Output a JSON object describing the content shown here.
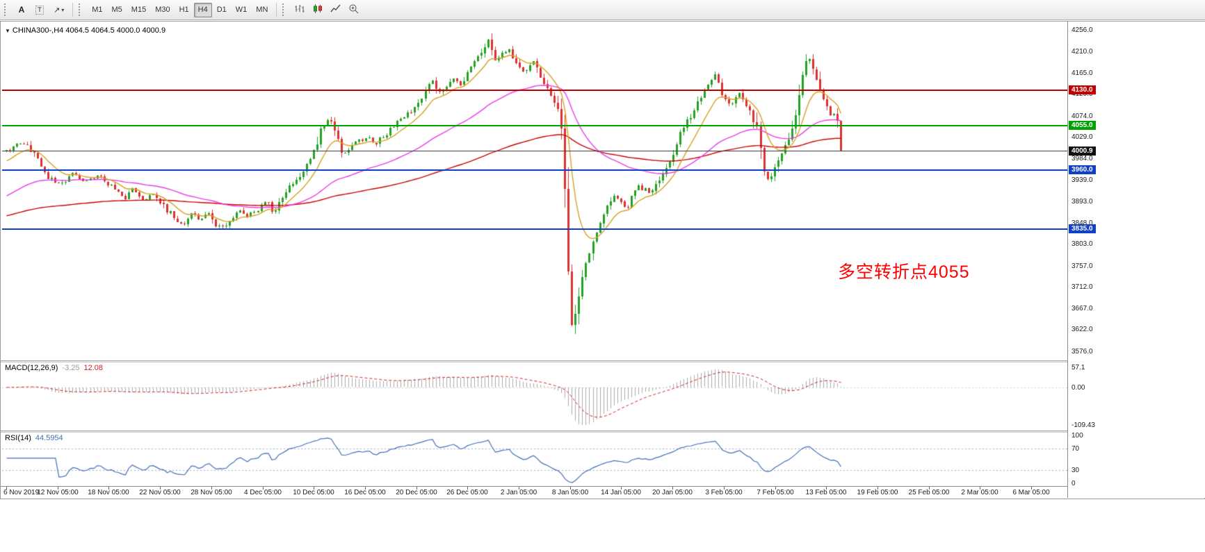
{
  "toolbar": {
    "line_tools": {
      "text_tool": "A",
      "text_label_tool": "T",
      "arrow_tool_glyph": "↗",
      "dropdown_caret": "▾"
    },
    "timeframes": [
      "M1",
      "M5",
      "M15",
      "M30",
      "H1",
      "H4",
      "D1",
      "W1",
      "MN"
    ],
    "active_timeframe": "H4",
    "chart_icons": [
      "bar-chart-mode-icon",
      "candlestick-mode-icon",
      "line-chart-mode-icon",
      "zoom-in-icon"
    ]
  },
  "main_chart": {
    "symbol_marker": "▼",
    "symbol_label": "CHINA300-,H4",
    "ohlc_label": "4064.5 4064.5 4000.0 4000.9",
    "annotation_text": "多空转折点4055",
    "annotation_color": "#FF0000",
    "price_ticks": [
      "4256.0",
      "4210.0",
      "4165.0",
      "4120.0",
      "4074.0",
      "4029.0",
      "3984.0",
      "3939.0",
      "3893.0",
      "3848.0",
      "3803.0",
      "3757.0",
      "3712.0",
      "3667.0",
      "3622.0",
      "3576.0"
    ],
    "badges": [
      {
        "text": "4130.0",
        "price": 4130.0,
        "color": "#C00000"
      },
      {
        "text": "4055.0",
        "price": 4055.0,
        "color": "#00A000"
      },
      {
        "text": "4000.9",
        "price": 4000.9,
        "color": "#111111"
      },
      {
        "text": "3960.0",
        "price": 3960.0,
        "color": "#1040C8"
      },
      {
        "text": "3835.0",
        "price": 3835.0,
        "color": "#1040C8"
      }
    ],
    "time_labels": [
      "6 Nov 2019",
      "12 Nov 05:00",
      "18 Nov 05:00",
      "22 Nov 05:00",
      "28 Nov 05:00",
      "4 Dec 05:00",
      "10 Dec 05:00",
      "16 Dec 05:00",
      "20 Dec 05:00",
      "26 Dec 05:00",
      "2 Jan 05:00",
      "8 Jan 05:00",
      "14 Jan 05:00",
      "20 Jan 05:00",
      "3 Feb 05:00",
      "7 Feb 05:00",
      "13 Feb 05:00",
      "19 Feb 05:00",
      "25 Feb 05:00",
      "2 Mar 05:00",
      "6 Mar 05:00"
    ]
  },
  "macd_panel": {
    "name": "MACD(12,26,9)",
    "main_value": "-3.25",
    "signal_value": "12.08",
    "ticks": [
      {
        "text": "57.1",
        "value": 57.1
      },
      {
        "text": "0.00",
        "value": 0
      },
      {
        "text": "-109.43",
        "value": -109.43
      }
    ]
  },
  "rsi_panel": {
    "name": "RSI(14)",
    "value": "44.5954",
    "ticks": [
      {
        "text": "100",
        "value": 100
      },
      {
        "text": "70",
        "value": 70
      },
      {
        "text": "30",
        "value": 30
      },
      {
        "text": "0",
        "value": 0
      }
    ],
    "levels": [
      70,
      30
    ]
  },
  "chart_data": {
    "type": "candlestick",
    "symbol": "CHINA300-",
    "timeframe": "H4",
    "title": "CHINA300-,H4 4064.5 4064.5 4000.0 4000.9",
    "y_range": [
      3558,
      4272
    ],
    "y_ticks": [
      4256.0,
      4210.0,
      4165.0,
      4120.0,
      4074.0,
      4029.0,
      3984.0,
      3939.0,
      3893.0,
      3848.0,
      3803.0,
      3757.0,
      3712.0,
      3667.0,
      3622.0,
      3576.0
    ],
    "x_ticks": [
      "6 Nov 2019",
      "12 Nov 05:00",
      "18 Nov 05:00",
      "22 Nov 05:00",
      "28 Nov 05:00",
      "4 Dec 05:00",
      "10 Dec 05:00",
      "16 Dec 05:00",
      "20 Dec 05:00",
      "26 Dec 05:00",
      "2 Jan 05:00",
      "8 Jan 05:00",
      "14 Jan 05:00",
      "20 Jan 05:00",
      "3 Feb 05:00",
      "7 Feb 05:00",
      "13 Feb 05:00",
      "19 Feb 05:00",
      "25 Feb 05:00",
      "2 Mar 05:00",
      "6 Mar 05:00"
    ],
    "candle_count": 240,
    "last_candle": {
      "open": 4064.5,
      "high": 4064.5,
      "low": 4000.0,
      "close": 4000.9
    },
    "colors": {
      "bull": "#22A022",
      "bear": "#DD3030",
      "macd_histogram": "#ABABAB",
      "macd_signal": "#CC2222",
      "rsi_line": "#3F6FB5"
    },
    "horizontal_levels": [
      {
        "price": 4130.0,
        "color": "#C00000",
        "width": 2,
        "role": "resistance"
      },
      {
        "price": 4055.0,
        "color": "#00A000",
        "width": 2,
        "role": "pivot"
      },
      {
        "price": 4000.9,
        "color": "#444444",
        "width": 1,
        "role": "bid-line"
      },
      {
        "price": 3960.0,
        "color": "#1040C8",
        "width": 2,
        "role": "support"
      },
      {
        "price": 3835.0,
        "color": "#1040C8",
        "width": 2,
        "role": "support"
      }
    ],
    "moving_averages": [
      {
        "name": "slow-ma",
        "color": "#CC0000",
        "period": 150,
        "seed": 3862
      },
      {
        "name": "medium-ma",
        "color": "#E83CE8",
        "period": 48,
        "seed": 3902
      },
      {
        "name": "fast-ma",
        "color": "#D7A022",
        "period": 10,
        "seed": 3975
      }
    ],
    "price_waypoints": [
      [
        0,
        4000
      ],
      [
        0.012,
        4014
      ],
      [
        0.025,
        4018
      ],
      [
        0.05,
        3948
      ],
      [
        0.062,
        3930
      ],
      [
        0.08,
        3952
      ],
      [
        0.095,
        3938
      ],
      [
        0.112,
        3952
      ],
      [
        0.128,
        3920
      ],
      [
        0.141,
        3900
      ],
      [
        0.15,
        3923
      ],
      [
        0.163,
        3898
      ],
      [
        0.178,
        3908
      ],
      [
        0.19,
        3880
      ],
      [
        0.2,
        3862
      ],
      [
        0.212,
        3846
      ],
      [
        0.222,
        3868
      ],
      [
        0.232,
        3852
      ],
      [
        0.243,
        3870
      ],
      [
        0.252,
        3843
      ],
      [
        0.26,
        3838
      ],
      [
        0.27,
        3858
      ],
      [
        0.28,
        3874
      ],
      [
        0.29,
        3860
      ],
      [
        0.3,
        3878
      ],
      [
        0.311,
        3896
      ],
      [
        0.32,
        3870
      ],
      [
        0.332,
        3908
      ],
      [
        0.342,
        3930
      ],
      [
        0.352,
        3952
      ],
      [
        0.362,
        3978
      ],
      [
        0.37,
        4005
      ],
      [
        0.378,
        4052
      ],
      [
        0.386,
        4068
      ],
      [
        0.395,
        4040
      ],
      [
        0.402,
        3992
      ],
      [
        0.41,
        4002
      ],
      [
        0.42,
        4018
      ],
      [
        0.432,
        4030
      ],
      [
        0.442,
        4016
      ],
      [
        0.452,
        4032
      ],
      [
        0.465,
        4055
      ],
      [
        0.478,
        4072
      ],
      [
        0.49,
        4098
      ],
      [
        0.498,
        4118
      ],
      [
        0.51,
        4152
      ],
      [
        0.519,
        4122
      ],
      [
        0.535,
        4160
      ],
      [
        0.543,
        4136
      ],
      [
        0.558,
        4178
      ],
      [
        0.57,
        4210
      ],
      [
        0.577,
        4242
      ],
      [
        0.585,
        4198
      ],
      [
        0.602,
        4214
      ],
      [
        0.618,
        4166
      ],
      [
        0.632,
        4190
      ],
      [
        0.645,
        4142
      ],
      [
        0.66,
        4098
      ],
      [
        0.664,
        4085
      ],
      [
        0.668,
        3985
      ],
      [
        0.672,
        3820
      ],
      [
        0.676,
        3625
      ],
      [
        0.682,
        3662
      ],
      [
        0.693,
        3755
      ],
      [
        0.704,
        3815
      ],
      [
        0.715,
        3866
      ],
      [
        0.729,
        3906
      ],
      [
        0.743,
        3882
      ],
      [
        0.757,
        3926
      ],
      [
        0.772,
        3912
      ],
      [
        0.784,
        3944
      ],
      [
        0.798,
        3986
      ],
      [
        0.809,
        4050
      ],
      [
        0.822,
        4078
      ],
      [
        0.837,
        4132
      ],
      [
        0.848,
        4164
      ],
      [
        0.859,
        4118
      ],
      [
        0.87,
        4098
      ],
      [
        0.88,
        4126
      ],
      [
        0.89,
        4088
      ],
      [
        0.9,
        4046
      ],
      [
        0.907,
        3966
      ],
      [
        0.913,
        3938
      ],
      [
        0.923,
        3972
      ],
      [
        0.934,
        4014
      ],
      [
        0.944,
        4066
      ],
      [
        0.954,
        4158
      ],
      [
        0.961,
        4206
      ],
      [
        0.969,
        4166
      ],
      [
        0.979,
        4106
      ],
      [
        0.987,
        4078
      ],
      [
        0.995,
        4082
      ],
      [
        1,
        4001
      ]
    ],
    "indicators": [
      {
        "name": "MACD",
        "params": [
          12,
          26,
          9
        ],
        "current_main": -3.25,
        "current_signal": 12.08,
        "axis_ticks": [
          57.1,
          0,
          -109.43
        ],
        "y_range": [
          -125,
          72
        ]
      },
      {
        "name": "RSI",
        "params": [
          14
        ],
        "current": 44.5954,
        "axis_ticks": [
          100,
          70,
          30,
          0
        ],
        "levels": [
          70,
          30
        ],
        "y_range": [
          0,
          100
        ]
      }
    ],
    "annotation": {
      "text": "多空转折点4055",
      "approx_price": 3750
    }
  }
}
